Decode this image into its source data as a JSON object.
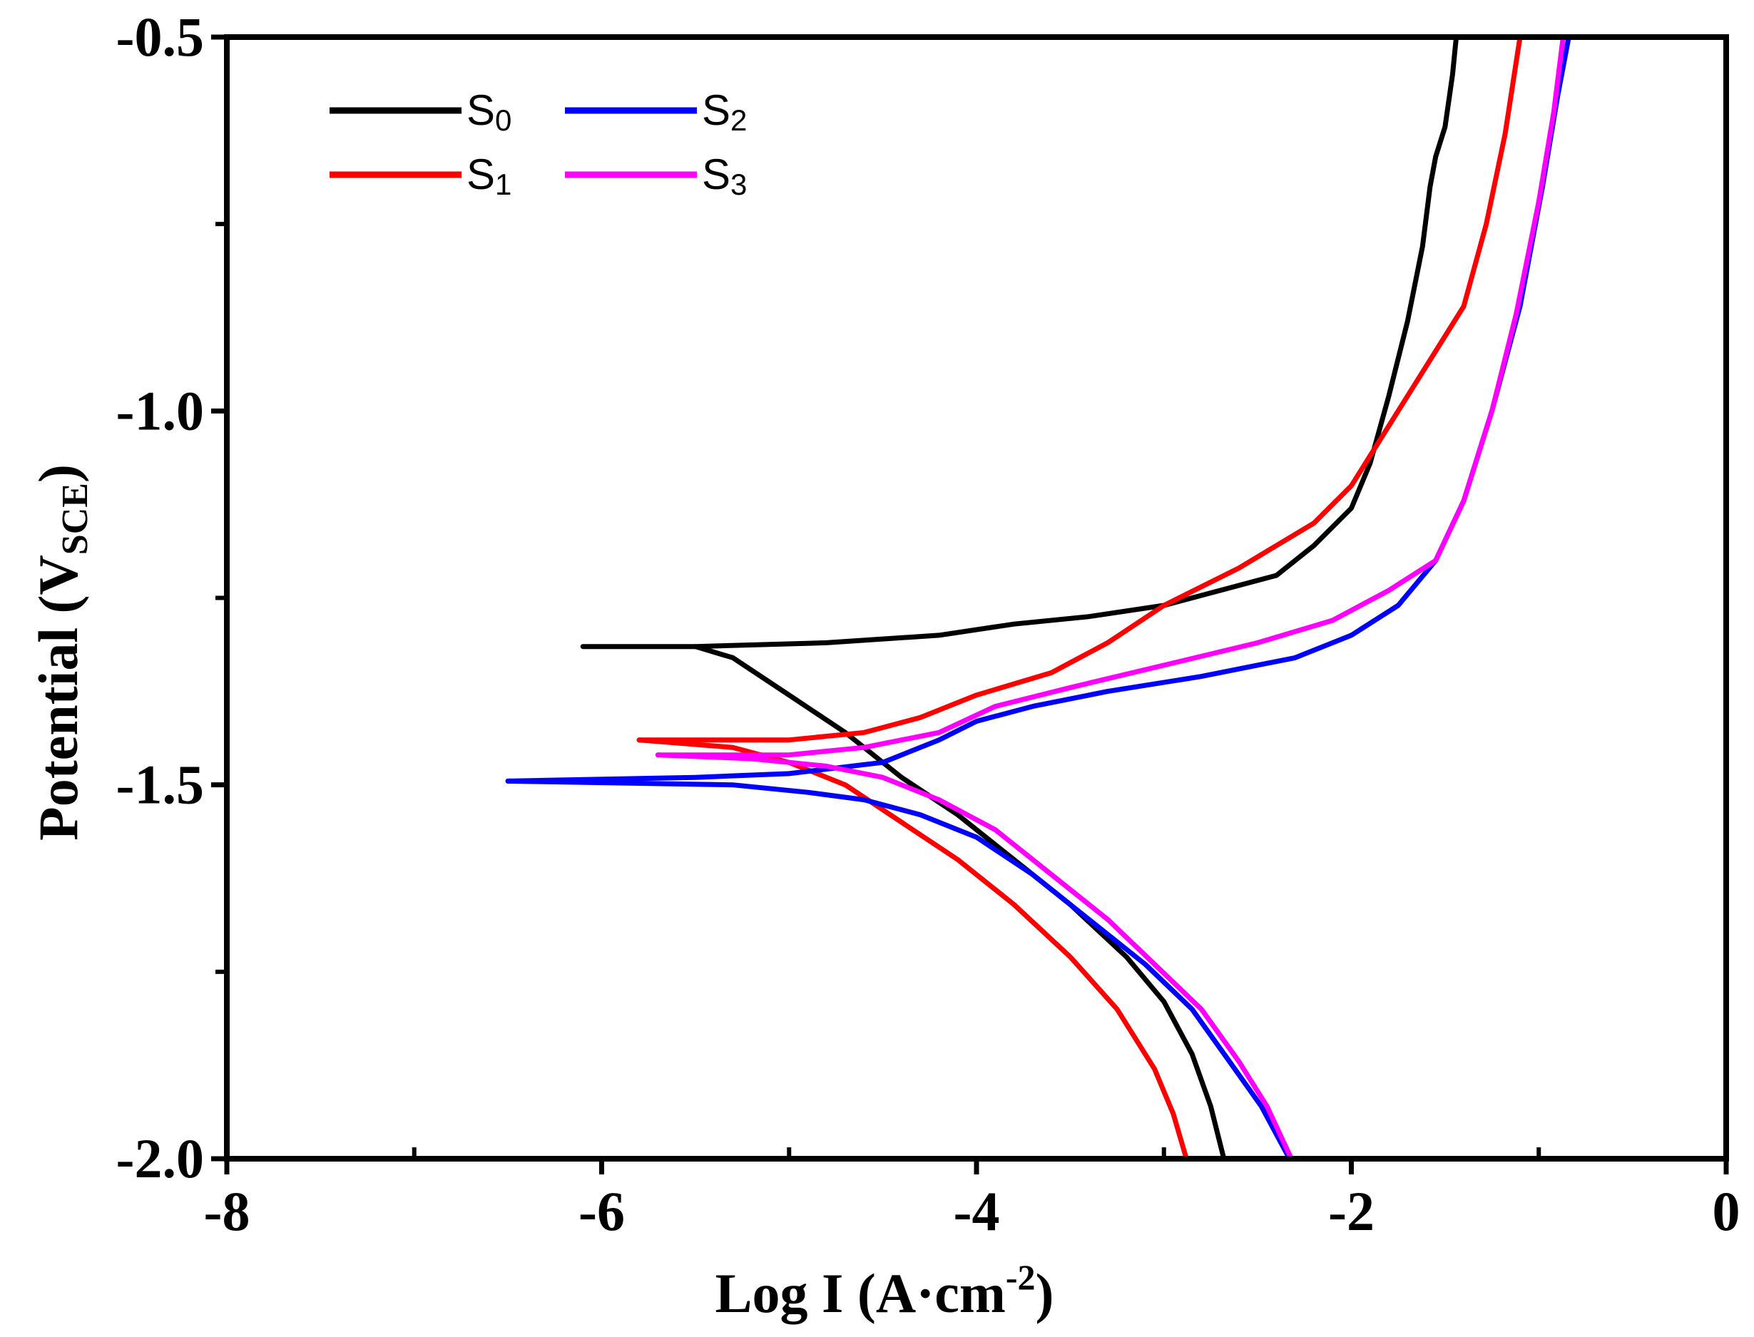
{
  "chart_data": {
    "type": "line",
    "title": "",
    "xlabel": "Log I (A·cm⁻²)",
    "xlabel_main": "Log I (A·cm",
    "xlabel_sup": "-2",
    "xlabel_end": ")",
    "ylabel_main": "Potential (V",
    "ylabel_sub": "SCE",
    "ylabel_end": ")",
    "xlim": [
      -8,
      0
    ],
    "ylim": [
      -2.0,
      -0.5
    ],
    "x_ticks": [
      -8,
      -6,
      -4,
      -2,
      0
    ],
    "x_tick_labels": [
      "-8",
      "-6",
      "-4",
      "-2",
      "0"
    ],
    "x_minor_ticks": [
      -7,
      -5,
      -3,
      -1
    ],
    "y_ticks": [
      -2.0,
      -1.5,
      -1.0,
      -0.5
    ],
    "y_tick_labels": [
      "-2.0",
      "-1.5",
      "-1.0",
      "-0.5"
    ],
    "y_minor_ticks": [
      -1.75,
      -1.25,
      -0.75
    ],
    "grid": false,
    "legend_position": "top-left",
    "series": [
      {
        "name": "S0",
        "name_main": "S",
        "name_sub": "0",
        "color": "#000000",
        "anodic": [
          [
            -6.1,
            -1.315
          ],
          [
            -5.5,
            -1.315
          ],
          [
            -4.8,
            -1.31
          ],
          [
            -4.2,
            -1.3
          ],
          [
            -3.8,
            -1.285
          ],
          [
            -3.4,
            -1.275
          ],
          [
            -3.0,
            -1.26
          ],
          [
            -2.7,
            -1.24
          ],
          [
            -2.4,
            -1.22
          ],
          [
            -2.2,
            -1.18
          ],
          [
            -2.0,
            -1.13
          ],
          [
            -1.9,
            -1.07
          ],
          [
            -1.8,
            -0.98
          ],
          [
            -1.7,
            -0.88
          ],
          [
            -1.62,
            -0.78
          ],
          [
            -1.58,
            -0.7
          ],
          [
            -1.55,
            -0.66
          ],
          [
            -1.5,
            -0.62
          ],
          [
            -1.46,
            -0.55
          ],
          [
            -1.44,
            -0.5
          ]
        ],
        "cathodic": [
          [
            -5.5,
            -1.315
          ],
          [
            -5.3,
            -1.33
          ],
          [
            -5.0,
            -1.38
          ],
          [
            -4.7,
            -1.43
          ],
          [
            -4.4,
            -1.49
          ],
          [
            -4.1,
            -1.54
          ],
          [
            -3.8,
            -1.6
          ],
          [
            -3.5,
            -1.66
          ],
          [
            -3.2,
            -1.73
          ],
          [
            -3.0,
            -1.79
          ],
          [
            -2.85,
            -1.86
          ],
          [
            -2.75,
            -1.93
          ],
          [
            -2.68,
            -2.0
          ]
        ]
      },
      {
        "name": "S1",
        "name_main": "S",
        "name_sub": "1",
        "color": "#ff0000",
        "anodic": [
          [
            -5.8,
            -1.44
          ],
          [
            -5.0,
            -1.44
          ],
          [
            -4.6,
            -1.43
          ],
          [
            -4.3,
            -1.41
          ],
          [
            -4.0,
            -1.38
          ],
          [
            -3.6,
            -1.35
          ],
          [
            -3.3,
            -1.31
          ],
          [
            -3.0,
            -1.26
          ],
          [
            -2.6,
            -1.21
          ],
          [
            -2.2,
            -1.15
          ],
          [
            -2.0,
            -1.1
          ],
          [
            -1.8,
            -1.02
          ],
          [
            -1.6,
            -0.94
          ],
          [
            -1.4,
            -0.86
          ],
          [
            -1.28,
            -0.75
          ],
          [
            -1.18,
            -0.63
          ],
          [
            -1.1,
            -0.5
          ]
        ],
        "cathodic": [
          [
            -5.8,
            -1.44
          ],
          [
            -5.3,
            -1.45
          ],
          [
            -5.0,
            -1.47
          ],
          [
            -4.7,
            -1.5
          ],
          [
            -4.4,
            -1.55
          ],
          [
            -4.1,
            -1.6
          ],
          [
            -3.8,
            -1.66
          ],
          [
            -3.5,
            -1.73
          ],
          [
            -3.25,
            -1.8
          ],
          [
            -3.05,
            -1.88
          ],
          [
            -2.95,
            -1.94
          ],
          [
            -2.88,
            -2.0
          ]
        ]
      },
      {
        "name": "S2",
        "name_main": "S",
        "name_sub": "2",
        "color": "#0000ff",
        "anodic": [
          [
            -6.5,
            -1.495
          ],
          [
            -5.5,
            -1.49
          ],
          [
            -5.0,
            -1.485
          ],
          [
            -4.5,
            -1.47
          ],
          [
            -4.2,
            -1.44
          ],
          [
            -4.0,
            -1.415
          ],
          [
            -3.7,
            -1.395
          ],
          [
            -3.3,
            -1.375
          ],
          [
            -2.8,
            -1.355
          ],
          [
            -2.3,
            -1.33
          ],
          [
            -2.0,
            -1.3
          ],
          [
            -1.75,
            -1.26
          ],
          [
            -1.55,
            -1.2
          ],
          [
            -1.4,
            -1.12
          ],
          [
            -1.25,
            -1.0
          ],
          [
            -1.1,
            -0.86
          ],
          [
            -0.98,
            -0.7
          ],
          [
            -0.9,
            -0.58
          ],
          [
            -0.84,
            -0.5
          ]
        ],
        "cathodic": [
          [
            -6.5,
            -1.495
          ],
          [
            -5.3,
            -1.5
          ],
          [
            -4.9,
            -1.51
          ],
          [
            -4.6,
            -1.52
          ],
          [
            -4.3,
            -1.54
          ],
          [
            -4.0,
            -1.57
          ],
          [
            -3.7,
            -1.62
          ],
          [
            -3.4,
            -1.68
          ],
          [
            -3.1,
            -1.74
          ],
          [
            -2.85,
            -1.8
          ],
          [
            -2.65,
            -1.87
          ],
          [
            -2.48,
            -1.93
          ],
          [
            -2.33,
            -2.0
          ]
        ]
      },
      {
        "name": "S3",
        "name_main": "S",
        "name_sub": "3",
        "color": "#ff00ff",
        "anodic": [
          [
            -5.7,
            -1.46
          ],
          [
            -5.0,
            -1.46
          ],
          [
            -4.6,
            -1.45
          ],
          [
            -4.2,
            -1.43
          ],
          [
            -3.9,
            -1.395
          ],
          [
            -3.5,
            -1.37
          ],
          [
            -3.0,
            -1.34
          ],
          [
            -2.5,
            -1.31
          ],
          [
            -2.1,
            -1.28
          ],
          [
            -1.8,
            -1.24
          ],
          [
            -1.55,
            -1.2
          ],
          [
            -1.4,
            -1.12
          ],
          [
            -1.25,
            -1.0
          ],
          [
            -1.12,
            -0.87
          ],
          [
            -1.0,
            -0.72
          ],
          [
            -0.92,
            -0.6
          ],
          [
            -0.87,
            -0.5
          ]
        ],
        "cathodic": [
          [
            -5.7,
            -1.46
          ],
          [
            -5.2,
            -1.465
          ],
          [
            -4.8,
            -1.475
          ],
          [
            -4.5,
            -1.49
          ],
          [
            -4.2,
            -1.52
          ],
          [
            -3.9,
            -1.56
          ],
          [
            -3.6,
            -1.62
          ],
          [
            -3.3,
            -1.68
          ],
          [
            -3.05,
            -1.74
          ],
          [
            -2.8,
            -1.8
          ],
          [
            -2.6,
            -1.87
          ],
          [
            -2.45,
            -1.93
          ],
          [
            -2.32,
            -2.0
          ]
        ]
      }
    ]
  }
}
